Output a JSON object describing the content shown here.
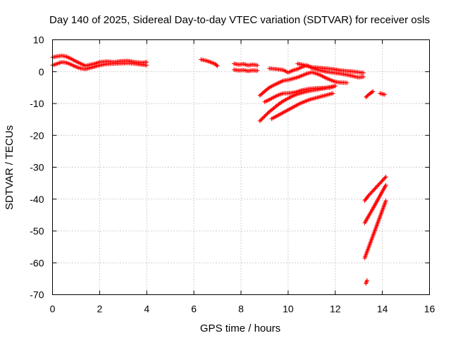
{
  "chart_data": {
    "type": "scatter",
    "title": "Day 140 of 2025, Sidereal Day-to-day VTEC variation (SDTVAR) for receiver osls",
    "xlabel": "GPS time / hours",
    "ylabel": "SDTVAR / TECUs",
    "xlim": [
      0,
      16
    ],
    "ylim": [
      -70,
      10
    ],
    "xticks": [
      "0",
      "2",
      "4",
      "6",
      "8",
      "10",
      "12",
      "14",
      "16"
    ],
    "yticks": [
      "10",
      "0",
      "-10",
      "-20",
      "-30",
      "-40",
      "-50",
      "-60",
      "-70"
    ],
    "grid": true,
    "marker": "plus",
    "color": "#ff0000",
    "segments": [
      {
        "x": [
          0.0,
          0.2,
          0.4,
          0.6,
          0.8,
          1.0,
          1.2,
          1.4,
          1.6,
          1.8,
          2.0,
          2.3,
          2.6,
          2.9,
          3.2,
          3.5,
          3.8,
          4.0
        ],
        "y": [
          4.5,
          4.8,
          5.0,
          4.7,
          4.0,
          3.2,
          2.5,
          1.8,
          2.2,
          2.5,
          3.0,
          3.2,
          3.0,
          3.3,
          3.4,
          3.0,
          2.8,
          3.0
        ]
      },
      {
        "x": [
          0.0,
          0.2,
          0.4,
          0.6,
          0.8,
          1.0,
          1.2,
          1.4,
          1.6,
          1.8,
          2.0,
          2.3,
          2.6,
          2.9,
          3.2,
          3.5,
          3.8,
          4.0
        ],
        "y": [
          2.0,
          2.5,
          3.0,
          2.8,
          2.2,
          1.5,
          1.0,
          0.8,
          1.2,
          1.6,
          2.0,
          2.4,
          2.5,
          2.6,
          2.7,
          2.5,
          2.2,
          2.0
        ]
      },
      {
        "x": [
          6.3,
          6.5,
          6.7,
          6.9,
          7.0
        ],
        "y": [
          3.8,
          3.5,
          3.0,
          2.4,
          1.8
        ]
      },
      {
        "x": [
          7.7,
          7.9,
          8.1,
          8.3,
          8.5,
          8.7
        ],
        "y": [
          2.5,
          2.2,
          2.4,
          2.0,
          2.2,
          2.0
        ]
      },
      {
        "x": [
          7.7,
          7.9,
          8.1,
          8.3,
          8.5,
          8.7
        ],
        "y": [
          0.6,
          0.4,
          0.5,
          0.2,
          0.4,
          0.3
        ]
      },
      {
        "x": [
          9.2,
          9.5,
          9.8,
          10.0,
          10.2,
          10.4,
          10.6,
          10.8,
          11.0,
          11.3,
          11.6,
          11.9,
          12.2,
          12.5,
          12.8,
          13.0,
          13.2
        ],
        "y": [
          1.0,
          0.8,
          0.5,
          -0.3,
          0.4,
          0.8,
          1.5,
          2.0,
          1.2,
          0.5,
          0.0,
          -0.3,
          -0.6,
          -1.0,
          -1.5,
          -1.8,
          -1.6
        ]
      },
      {
        "x": [
          10.4,
          10.6,
          10.8,
          11.0,
          11.3,
          11.6,
          11.9,
          12.2,
          12.5,
          12.8,
          13.0,
          13.2
        ],
        "y": [
          2.5,
          2.2,
          1.8,
          1.4,
          1.2,
          1.0,
          0.8,
          0.4,
          0.2,
          0.0,
          -0.2,
          -0.4
        ]
      },
      {
        "x": [
          8.8,
          9.0,
          9.2,
          9.4,
          9.6,
          9.8,
          10.0,
          10.2,
          10.4,
          10.6,
          10.8,
          11.0,
          11.2,
          11.4,
          11.6,
          11.8,
          12.0,
          12.2,
          12.5
        ],
        "y": [
          -7.5,
          -6.2,
          -5.0,
          -4.2,
          -3.5,
          -2.8,
          -2.6,
          -2.2,
          -1.8,
          -1.2,
          -0.6,
          -0.2,
          -0.6,
          -1.2,
          -2.0,
          -2.6,
          -3.2,
          -3.4,
          -3.5
        ]
      },
      {
        "x": [
          9.0,
          9.2,
          9.4,
          9.6,
          9.8,
          10.0,
          10.3,
          10.6,
          10.9,
          11.2,
          11.5,
          11.8,
          12.0
        ],
        "y": [
          -9.5,
          -8.8,
          -8.0,
          -7.3,
          -6.8,
          -6.8,
          -6.5,
          -5.8,
          -5.4,
          -5.2,
          -5.1,
          -5.0,
          -4.5
        ]
      },
      {
        "x": [
          8.8,
          9.0,
          9.2,
          9.4,
          9.6,
          9.8,
          10.0,
          10.2,
          10.4,
          10.6,
          10.8,
          11.0,
          11.2,
          11.4,
          11.6,
          11.8,
          12.0
        ],
        "y": [
          -15.5,
          -14.0,
          -12.6,
          -11.4,
          -10.2,
          -9.2,
          -8.4,
          -7.6,
          -7.0,
          -6.6,
          -6.2,
          -5.9,
          -5.7,
          -5.4,
          -5.1,
          -4.8,
          -4.5
        ]
      },
      {
        "x": [
          9.3,
          9.5,
          9.7,
          9.9,
          10.1,
          10.3,
          10.5,
          10.7,
          10.9,
          11.1,
          11.3,
          11.5,
          11.7,
          11.9
        ],
        "y": [
          -14.8,
          -14.0,
          -13.2,
          -12.4,
          -11.6,
          -10.8,
          -10.0,
          -9.4,
          -8.8,
          -8.4,
          -8.0,
          -7.6,
          -7.2,
          -6.8
        ]
      },
      {
        "x": [
          13.3,
          13.45,
          13.6
        ],
        "y": [
          -8.0,
          -7.0,
          -6.2
        ]
      },
      {
        "x": [
          13.9,
          14.0,
          14.1
        ],
        "y": [
          -6.8,
          -7.0,
          -7.2
        ]
      },
      {
        "x": [
          13.25,
          13.4,
          13.55,
          13.7,
          13.85,
          14.0,
          14.15
        ],
        "y": [
          -40.5,
          -39.0,
          -37.8,
          -36.6,
          -35.4,
          -34.2,
          -33.0
        ]
      },
      {
        "x": [
          13.25,
          13.4,
          13.55,
          13.7,
          13.85,
          14.0,
          14.15
        ],
        "y": [
          -47.5,
          -45.5,
          -43.6,
          -41.6,
          -39.6,
          -37.6,
          -35.6
        ]
      },
      {
        "x": [
          13.25,
          13.4,
          13.55,
          13.7,
          13.85,
          14.0,
          14.15
        ],
        "y": [
          -58.5,
          -55.5,
          -52.5,
          -49.5,
          -46.5,
          -43.5,
          -40.5
        ]
      },
      {
        "x": [
          13.3,
          13.35
        ],
        "y": [
          -66.5,
          -65.5
        ]
      }
    ]
  }
}
